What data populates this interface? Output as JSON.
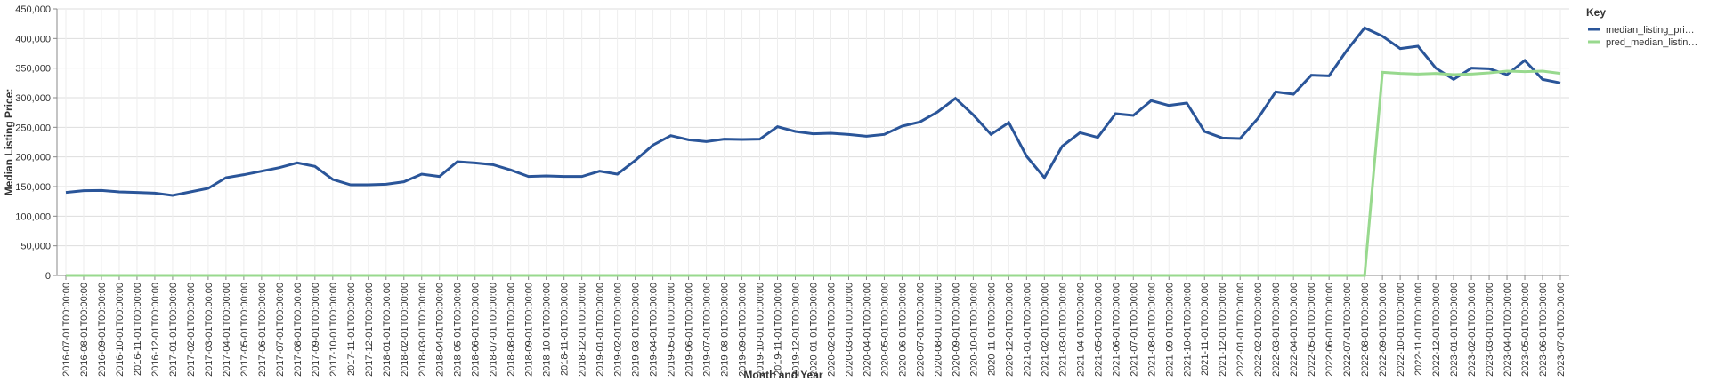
{
  "chart_data": {
    "type": "line",
    "x_label": "Month and Year",
    "y_label": "Median Listing Price:",
    "legend_title": "Key",
    "categories": [
      "2016-07-01T00:00:00",
      "2016-08-01T00:00:00",
      "2016-09-01T00:00:00",
      "2016-10-01T00:00:00",
      "2016-11-01T00:00:00",
      "2016-12-01T00:00:00",
      "2017-01-01T00:00:00",
      "2017-02-01T00:00:00",
      "2017-03-01T00:00:00",
      "2017-04-01T00:00:00",
      "2017-05-01T00:00:00",
      "2017-06-01T00:00:00",
      "2017-07-01T00:00:00",
      "2017-08-01T00:00:00",
      "2017-09-01T00:00:00",
      "2017-10-01T00:00:00",
      "2017-11-01T00:00:00",
      "2017-12-01T00:00:00",
      "2018-01-01T00:00:00",
      "2018-02-01T00:00:00",
      "2018-03-01T00:00:00",
      "2018-04-01T00:00:00",
      "2018-05-01T00:00:00",
      "2018-06-01T00:00:00",
      "2018-07-01T00:00:00",
      "2018-08-01T00:00:00",
      "2018-09-01T00:00:00",
      "2018-10-01T00:00:00",
      "2018-11-01T00:00:00",
      "2018-12-01T00:00:00",
      "2019-01-01T00:00:00",
      "2019-02-01T00:00:00",
      "2019-03-01T00:00:00",
      "2019-04-01T00:00:00",
      "2019-05-01T00:00:00",
      "2019-06-01T00:00:00",
      "2019-07-01T00:00:00",
      "2019-08-01T00:00:00",
      "2019-09-01T00:00:00",
      "2019-10-01T00:00:00",
      "2019-11-01T00:00:00",
      "2019-12-01T00:00:00",
      "2020-01-01T00:00:00",
      "2020-02-01T00:00:00",
      "2020-03-01T00:00:00",
      "2020-04-01T00:00:00",
      "2020-05-01T00:00:00",
      "2020-06-01T00:00:00",
      "2020-07-01T00:00:00",
      "2020-08-01T00:00:00",
      "2020-09-01T00:00:00",
      "2020-10-01T00:00:00",
      "2020-11-01T00:00:00",
      "2020-12-01T00:00:00",
      "2021-01-01T00:00:00",
      "2021-02-01T00:00:00",
      "2021-03-01T00:00:00",
      "2021-04-01T00:00:00",
      "2021-05-01T00:00:00",
      "2021-06-01T00:00:00",
      "2021-07-01T00:00:00",
      "2021-08-01T00:00:00",
      "2021-09-01T00:00:00",
      "2021-10-01T00:00:00",
      "2021-11-01T00:00:00",
      "2021-12-01T00:00:00",
      "2022-01-01T00:00:00",
      "2022-02-01T00:00:00",
      "2022-03-01T00:00:00",
      "2022-04-01T00:00:00",
      "2022-05-01T00:00:00",
      "2022-06-01T00:00:00",
      "2022-07-01T00:00:00",
      "2022-08-01T00:00:00",
      "2022-09-01T00:00:00",
      "2022-10-01T00:00:00",
      "2022-11-01T00:00:00",
      "2022-12-01T00:00:00",
      "2023-01-01T00:00:00",
      "2023-02-01T00:00:00",
      "2023-03-01T00:00:00",
      "2023-04-01T00:00:00",
      "2023-05-01T00:00:00",
      "2023-06-01T00:00:00",
      "2023-07-01T00:00:00"
    ],
    "series": [
      {
        "name": "median_listing_pri…",
        "color": "#2a5599",
        "values": [
          140000,
          143000,
          143500,
          141000,
          140000,
          139000,
          135000,
          141000,
          147000,
          165000,
          170000,
          176000,
          182000,
          190000,
          184000,
          162000,
          153000,
          153000,
          154000,
          158000,
          171000,
          167000,
          192000,
          190000,
          187000,
          178000,
          167000,
          168000,
          167000,
          167000,
          176000,
          171000,
          194000,
          220000,
          236000,
          229000,
          226000,
          230000,
          229500,
          230000,
          251000,
          243000,
          239000,
          240000,
          238000,
          235000,
          238000,
          252000,
          259000,
          276000,
          299000,
          271000,
          238000,
          258000,
          201000,
          165000,
          218000,
          241000,
          233000,
          273000,
          270000,
          295000,
          287000,
          291000,
          243000,
          232000,
          231000,
          265000,
          310000,
          306000,
          338000,
          337000,
          380000,
          418000,
          404000,
          383000,
          387000,
          350000,
          331000,
          350000,
          349000,
          339000,
          363000,
          331000,
          325000
        ]
      },
      {
        "name": "pred_median_listin…",
        "color": "#98d98e",
        "values": [
          0,
          0,
          0,
          0,
          0,
          0,
          0,
          0,
          0,
          0,
          0,
          0,
          0,
          0,
          0,
          0,
          0,
          0,
          0,
          0,
          0,
          0,
          0,
          0,
          0,
          0,
          0,
          0,
          0,
          0,
          0,
          0,
          0,
          0,
          0,
          0,
          0,
          0,
          0,
          0,
          0,
          0,
          0,
          0,
          0,
          0,
          0,
          0,
          0,
          0,
          0,
          0,
          0,
          0,
          0,
          0,
          0,
          0,
          0,
          0,
          0,
          0,
          0,
          0,
          0,
          0,
          0,
          0,
          0,
          0,
          0,
          0,
          0,
          0,
          343000,
          341000,
          340000,
          341000,
          339000,
          340000,
          342000,
          345000,
          344000,
          345000,
          341000
        ]
      }
    ],
    "ylim": [
      0,
      450000
    ],
    "yticks": [
      0,
      {
        "value": 50000,
        "label": "50,000"
      },
      {
        "value": 100000,
        "label": "100,000"
      },
      {
        "value": 150000,
        "label": "150,000"
      },
      {
        "value": 200000,
        "label": "200,000"
      },
      {
        "value": 250000,
        "label": "250,000"
      },
      {
        "value": 300000,
        "label": "300,000"
      },
      {
        "value": 350000,
        "label": "350,000"
      },
      {
        "value": 400000,
        "label": "400,000"
      },
      {
        "value": 450000,
        "label": "450,000"
      }
    ],
    "grid": true
  }
}
